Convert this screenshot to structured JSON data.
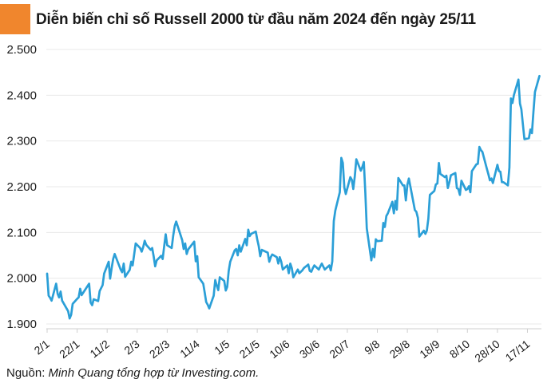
{
  "header": {
    "title": "Diễn biến chỉ số Russell 2000 từ đầu năm 2024 đến ngày 25/11",
    "accent_color": "#F0862D"
  },
  "footer": {
    "source_label": "Nguồn:",
    "source_text": " Minh Quang tổng hợp từ Investing.com."
  },
  "chart_data": {
    "type": "line",
    "title": "Diễn biến chỉ số Russell 2000 từ đầu năm 2024 đến ngày 25/11",
    "xlabel": "",
    "ylabel": "",
    "grid": "horizontal",
    "legend_position": "none",
    "line_color": "#2B9FD7",
    "ylim": [
      1900,
      2500
    ],
    "x_domain": [
      "2/1",
      "25/11"
    ],
    "y_tick_labels": [
      "2.500",
      "2.400",
      "2.300",
      "2.200",
      "2.100",
      "2.000",
      "1.900"
    ],
    "y_tick_values": [
      2500,
      2400,
      2300,
      2200,
      2100,
      2000,
      1900
    ],
    "x_tick_labels": [
      "2/1",
      "22/1",
      "11/2",
      "2/3",
      "22/3",
      "11/4",
      "1/5",
      "21/5",
      "10/6",
      "30/6",
      "20/7",
      "9/8",
      "29/8",
      "18/9",
      "8/10",
      "28/10",
      "17/11"
    ],
    "series": [
      {
        "name": "Russell 2000",
        "points": [
          [
            "2/1",
            2010
          ],
          [
            "3/1",
            1962
          ],
          [
            "4/1",
            1957
          ],
          [
            "5/1",
            1951
          ],
          [
            "8/1",
            1988
          ],
          [
            "9/1",
            1966
          ],
          [
            "10/1",
            1958
          ],
          [
            "11/1",
            1971
          ],
          [
            "12/1",
            1951
          ],
          [
            "16/1",
            1928
          ],
          [
            "17/1",
            1912
          ],
          [
            "18/1",
            1920
          ],
          [
            "19/1",
            1944
          ],
          [
            "22/1",
            1955
          ],
          [
            "23/1",
            1958
          ],
          [
            "24/1",
            1977
          ],
          [
            "25/1",
            1963
          ],
          [
            "29/1",
            1983
          ],
          [
            "30/1",
            1988
          ],
          [
            "31/1",
            1947
          ],
          [
            "1/2",
            1941
          ],
          [
            "2/2",
            1954
          ],
          [
            "5/2",
            1950
          ],
          [
            "6/2",
            1972
          ],
          [
            "8/2",
            1985
          ],
          [
            "9/2",
            2010
          ],
          [
            "12/2",
            2036
          ],
          [
            "13/2",
            1999
          ],
          [
            "14/2",
            2022
          ],
          [
            "15/2",
            2042
          ],
          [
            "16/2",
            2053
          ],
          [
            "20/2",
            2019
          ],
          [
            "21/2",
            2013
          ],
          [
            "22/2",
            2032
          ],
          [
            "23/2",
            2003
          ],
          [
            "26/2",
            2018
          ],
          [
            "27/2",
            2036
          ],
          [
            "28/2",
            2028
          ],
          [
            "29/2",
            2052
          ],
          [
            "1/3",
            2076
          ],
          [
            "4/3",
            2066
          ],
          [
            "5/3",
            2058
          ],
          [
            "6/3",
            2068
          ],
          [
            "7/3",
            2082
          ],
          [
            "8/3",
            2073
          ],
          [
            "11/3",
            2062
          ],
          [
            "12/3",
            2066
          ],
          [
            "13/3",
            2048
          ],
          [
            "14/3",
            2026
          ],
          [
            "15/3",
            2039
          ],
          [
            "18/3",
            2049
          ],
          [
            "19/3",
            2042
          ],
          [
            "20/3",
            2070
          ],
          [
            "21/3",
            2096
          ],
          [
            "22/3",
            2072
          ],
          [
            "25/3",
            2066
          ],
          [
            "26/3",
            2093
          ],
          [
            "27/3",
            2114
          ],
          [
            "28/3",
            2124
          ],
          [
            "1/4",
            2083
          ],
          [
            "2/4",
            2064
          ],
          [
            "3/4",
            2076
          ],
          [
            "4/4",
            2053
          ],
          [
            "5/4",
            2063
          ],
          [
            "9/4",
            2080
          ],
          [
            "10/4",
            2037
          ],
          [
            "11/4",
            2048
          ],
          [
            "12/4",
            2002
          ],
          [
            "15/4",
            1988
          ],
          [
            "16/4",
            1968
          ],
          [
            "17/4",
            1948
          ],
          [
            "18/4",
            1942
          ],
          [
            "19/4",
            1934
          ],
          [
            "22/4",
            1962
          ],
          [
            "23/4",
            1996
          ],
          [
            "24/4",
            1984
          ],
          [
            "25/4",
            1974
          ],
          [
            "26/4",
            2002
          ],
          [
            "29/4",
            1994
          ],
          [
            "30/4",
            1973
          ],
          [
            "1/5",
            1981
          ],
          [
            "2/5",
            2016
          ],
          [
            "3/5",
            2036
          ],
          [
            "6/5",
            2061
          ],
          [
            "7/5",
            2064
          ],
          [
            "8/5",
            2050
          ],
          [
            "9/5",
            2072
          ],
          [
            "10/5",
            2058
          ],
          [
            "13/5",
            2086
          ],
          [
            "14/5",
            2072
          ],
          [
            "15/5",
            2106
          ],
          [
            "16/5",
            2092
          ],
          [
            "17/5",
            2097
          ],
          [
            "20/5",
            2102
          ],
          [
            "21/5",
            2085
          ],
          [
            "22/5",
            2070
          ],
          [
            "23/5",
            2048
          ],
          [
            "24/5",
            2062
          ],
          [
            "28/5",
            2056
          ],
          [
            "29/5",
            2036
          ],
          [
            "30/5",
            2046
          ],
          [
            "31/5",
            2052
          ],
          [
            "3/6",
            2046
          ],
          [
            "4/6",
            2032
          ],
          [
            "5/6",
            2046
          ],
          [
            "6/6",
            2036
          ],
          [
            "7/6",
            2019
          ],
          [
            "10/6",
            2028
          ],
          [
            "11/6",
            2011
          ],
          [
            "12/6",
            2032
          ],
          [
            "13/6",
            2022
          ],
          [
            "14/6",
            2002
          ],
          [
            "17/6",
            2019
          ],
          [
            "18/6",
            2011
          ],
          [
            "20/6",
            2017
          ],
          [
            "21/6",
            2022
          ],
          [
            "24/6",
            2030
          ],
          [
            "25/6",
            2016
          ],
          [
            "26/6",
            2014
          ],
          [
            "27/6",
            2022
          ],
          [
            "28/6",
            2028
          ],
          [
            "1/7",
            2019
          ],
          [
            "2/7",
            2026
          ],
          [
            "3/7",
            2032
          ],
          [
            "5/7",
            2019
          ],
          [
            "8/7",
            2028
          ],
          [
            "9/7",
            2017
          ],
          [
            "10/7",
            2037
          ],
          [
            "11/7",
            2125
          ],
          [
            "12/7",
            2148
          ],
          [
            "15/7",
            2188
          ],
          [
            "16/7",
            2263
          ],
          [
            "17/7",
            2252
          ],
          [
            "18/7",
            2198
          ],
          [
            "19/7",
            2184
          ],
          [
            "22/7",
            2221
          ],
          [
            "23/7",
            2215
          ],
          [
            "24/7",
            2195
          ],
          [
            "25/7",
            2223
          ],
          [
            "26/7",
            2260
          ],
          [
            "29/7",
            2235
          ],
          [
            "30/7",
            2243
          ],
          [
            "31/7",
            2254
          ],
          [
            "1/8",
            2186
          ],
          [
            "2/8",
            2109
          ],
          [
            "5/8",
            2039
          ],
          [
            "6/8",
            2064
          ],
          [
            "7/8",
            2046
          ],
          [
            "8/8",
            2085
          ],
          [
            "9/8",
            2081
          ],
          [
            "12/8",
            2082
          ],
          [
            "13/8",
            2121
          ],
          [
            "14/8",
            2112
          ],
          [
            "15/8",
            2136
          ],
          [
            "16/8",
            2142
          ],
          [
            "19/8",
            2167
          ],
          [
            "20/8",
            2142
          ],
          [
            "21/8",
            2169
          ],
          [
            "22/8",
            2150
          ],
          [
            "23/8",
            2219
          ],
          [
            "26/8",
            2203
          ],
          [
            "27/8",
            2203
          ],
          [
            "28/8",
            2170
          ],
          [
            "29/8",
            2204
          ],
          [
            "30/8",
            2218
          ],
          [
            "3/9",
            2149
          ],
          [
            "4/9",
            2145
          ],
          [
            "5/9",
            2132
          ],
          [
            "6/9",
            2091
          ],
          [
            "9/9",
            2104
          ],
          [
            "10/9",
            2097
          ],
          [
            "11/9",
            2104
          ],
          [
            "12/9",
            2130
          ],
          [
            "13/9",
            2182
          ],
          [
            "16/9",
            2191
          ],
          [
            "17/9",
            2205
          ],
          [
            "18/9",
            2207
          ],
          [
            "19/9",
            2252
          ],
          [
            "20/9",
            2228
          ],
          [
            "23/9",
            2221
          ],
          [
            "24/9",
            2224
          ],
          [
            "25/9",
            2197
          ],
          [
            "26/9",
            2210
          ],
          [
            "27/9",
            2225
          ],
          [
            "30/9",
            2230
          ],
          [
            "1/10",
            2197
          ],
          [
            "2/10",
            2195
          ],
          [
            "3/10",
            2182
          ],
          [
            "4/10",
            2213
          ],
          [
            "7/10",
            2193
          ],
          [
            "8/10",
            2195
          ],
          [
            "9/10",
            2201
          ],
          [
            "10/10",
            2188
          ],
          [
            "11/10",
            2234
          ],
          [
            "14/10",
            2249
          ],
          [
            "15/10",
            2250
          ],
          [
            "16/10",
            2287
          ],
          [
            "17/10",
            2280
          ],
          [
            "18/10",
            2276
          ],
          [
            "21/10",
            2239
          ],
          [
            "22/10",
            2227
          ],
          [
            "23/10",
            2214
          ],
          [
            "24/10",
            2218
          ],
          [
            "25/10",
            2208
          ],
          [
            "28/10",
            2248
          ],
          [
            "29/10",
            2234
          ],
          [
            "30/10",
            2233
          ],
          [
            "31/10",
            2210
          ],
          [
            "1/11",
            2210
          ],
          [
            "4/11",
            2203
          ],
          [
            "5/11",
            2242
          ],
          [
            "6/11",
            2393
          ],
          [
            "7/11",
            2383
          ],
          [
            "8/11",
            2400
          ],
          [
            "11/11",
            2434
          ],
          [
            "12/11",
            2382
          ],
          [
            "13/11",
            2369
          ],
          [
            "14/11",
            2336
          ],
          [
            "15/11",
            2304
          ],
          [
            "18/11",
            2306
          ],
          [
            "19/11",
            2325
          ],
          [
            "20/11",
            2317
          ],
          [
            "21/11",
            2364
          ],
          [
            "22/11",
            2407
          ],
          [
            "25/11",
            2442
          ]
        ]
      }
    ]
  }
}
